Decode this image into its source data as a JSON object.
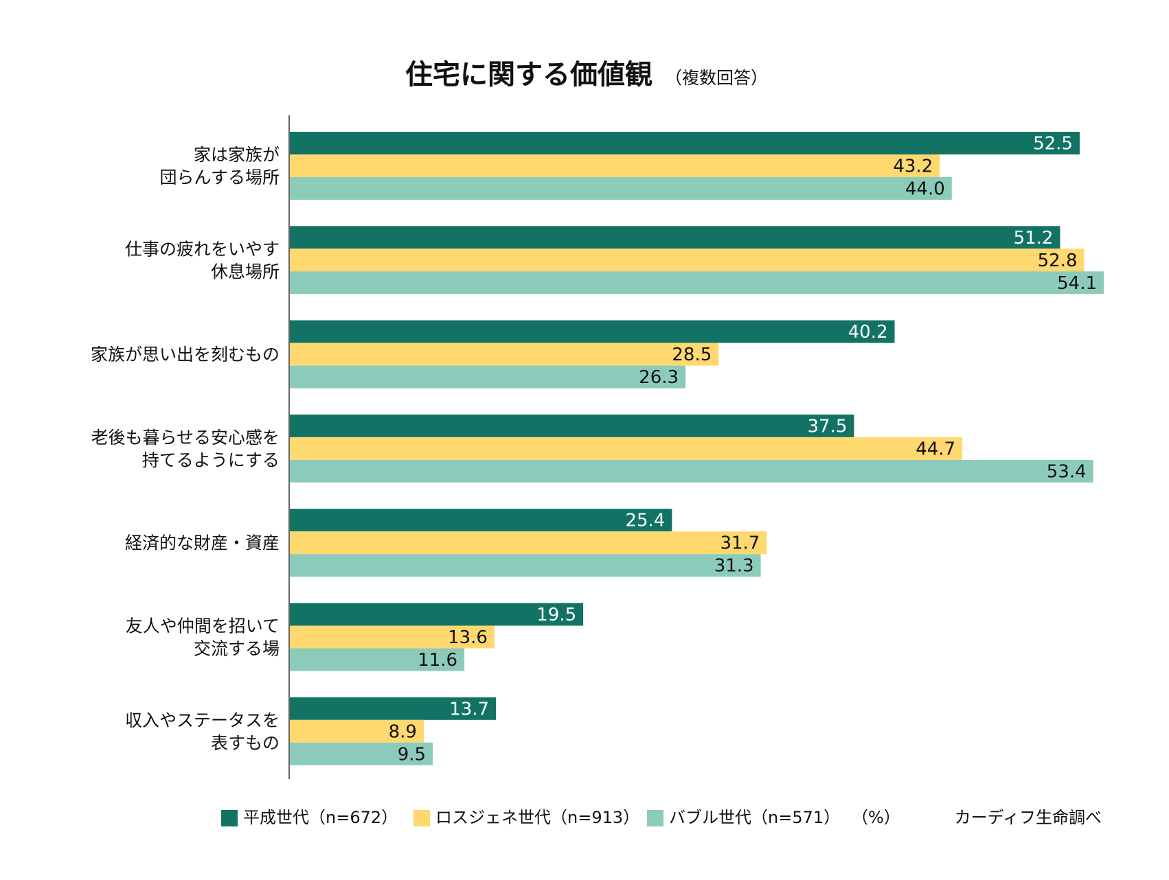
{
  "chart_data": {
    "type": "bar",
    "orientation": "horizontal",
    "title": "住宅に関する価値観",
    "subtitle": "（複数回答）",
    "categories": [
      [
        "家は家族が",
        "団らんする場所"
      ],
      [
        "仕事の疲れをいやす",
        "休息場所"
      ],
      [
        "家族が思い出を刻むもの"
      ],
      [
        "老後も暮らせる安心感を",
        "持てるようにする"
      ],
      [
        "経済的な財産・資産"
      ],
      [
        "友人や仲間を招いて",
        "交流する場"
      ],
      [
        "収入やステータスを",
        "表すもの"
      ]
    ],
    "series": [
      {
        "name": "平成世代（n=672）",
        "color": "#127364",
        "label_color": "#ffffff",
        "values": [
          52.5,
          51.2,
          40.2,
          37.5,
          25.4,
          19.5,
          13.7
        ],
        "labels": [
          "52.5",
          "51.2",
          "40.2",
          "37.5",
          "25.4",
          "19.5",
          "13.7"
        ]
      },
      {
        "name": "ロスジェネ世代（n=913）",
        "color": "#ffd86f",
        "label_color": "#111111",
        "values": [
          43.2,
          52.8,
          28.5,
          44.7,
          31.7,
          13.6,
          8.9
        ],
        "labels": [
          "43.2",
          "52.8",
          "28.5",
          "44.7",
          "31.7",
          "13.6",
          "8.9"
        ]
      },
      {
        "name": "バブル世代（n=571）",
        "color": "#8ccbba",
        "label_color": "#111111",
        "values": [
          44.0,
          54.1,
          26.3,
          53.4,
          31.3,
          11.6,
          9.5
        ],
        "labels": [
          "44.0",
          "54.1",
          "26.3",
          "53.4",
          "31.3",
          "11.6",
          "9.5"
        ]
      }
    ],
    "xlim": [
      0,
      54.1
    ],
    "grid": false,
    "legend_position": "bottom",
    "unit": "（%）",
    "source": "カーディフ生命調べ"
  }
}
